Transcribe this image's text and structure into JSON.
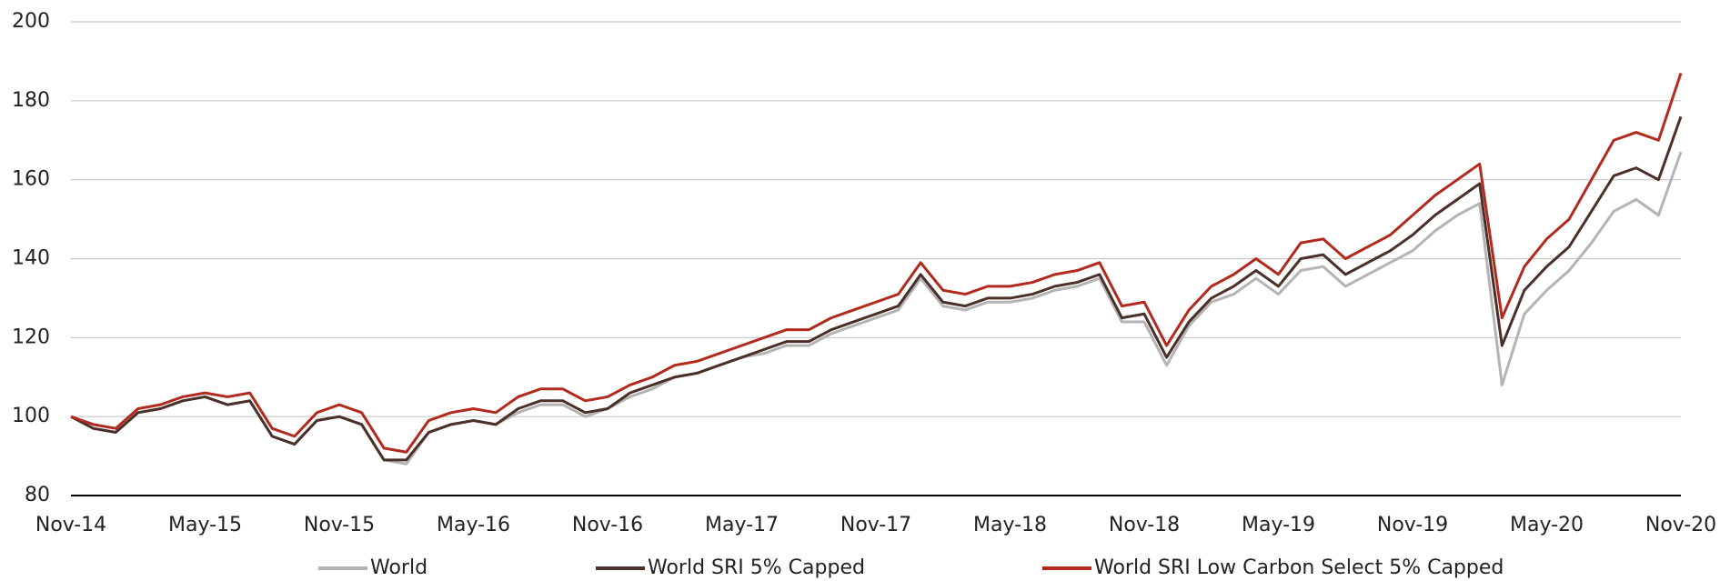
{
  "chart_data": {
    "type": "line",
    "categories": [
      "Nov-14",
      null,
      null,
      null,
      null,
      null,
      "May-15",
      null,
      null,
      null,
      null,
      null,
      "Nov-15",
      null,
      null,
      null,
      null,
      null,
      "May-16",
      null,
      null,
      null,
      null,
      null,
      "Nov-16",
      null,
      null,
      null,
      null,
      null,
      "May-17",
      null,
      null,
      null,
      null,
      null,
      "Nov-17",
      null,
      null,
      null,
      null,
      null,
      "May-18",
      null,
      null,
      null,
      null,
      null,
      "Nov-18",
      null,
      null,
      null,
      null,
      null,
      "May-19",
      null,
      null,
      null,
      null,
      null,
      "Nov-19",
      null,
      null,
      null,
      null,
      null,
      "May-20",
      null,
      null,
      null,
      null,
      null,
      "Nov-20"
    ],
    "series": [
      {
        "name": "World",
        "color": "#b4b4b4",
        "values": [
          100,
          97,
          96,
          101,
          102,
          104,
          105,
          103,
          104,
          95,
          93,
          99,
          100,
          98,
          89,
          88,
          96,
          98,
          99,
          98,
          101,
          103,
          103,
          100,
          102,
          105,
          107,
          110,
          111,
          113,
          115,
          116,
          118,
          118,
          121,
          123,
          125,
          127,
          135,
          128,
          127,
          129,
          129,
          130,
          132,
          133,
          135,
          124,
          124,
          113,
          123,
          129,
          131,
          135,
          131,
          137,
          138,
          133,
          136,
          139,
          142,
          147,
          151,
          154,
          108,
          126,
          132,
          137,
          144,
          152,
          155,
          151,
          167
        ]
      },
      {
        "name": "World SRI 5% Capped",
        "color": "#4a3028",
        "values": [
          100,
          97,
          96,
          101,
          102,
          104,
          105,
          103,
          104,
          95,
          93,
          99,
          100,
          98,
          89,
          89,
          96,
          98,
          99,
          98,
          102,
          104,
          104,
          101,
          102,
          106,
          108,
          110,
          111,
          113,
          115,
          117,
          119,
          119,
          122,
          124,
          126,
          128,
          136,
          129,
          128,
          130,
          130,
          131,
          133,
          134,
          136,
          125,
          126,
          115,
          124,
          130,
          133,
          137,
          133,
          140,
          141,
          136,
          139,
          142,
          146,
          151,
          155,
          159,
          118,
          132,
          138,
          143,
          152,
          161,
          163,
          160,
          176
        ]
      },
      {
        "name": "World SRI Low Carbon Select 5% Capped",
        "color": "#b22a1d",
        "values": [
          100,
          98,
          97,
          102,
          103,
          105,
          106,
          105,
          106,
          97,
          95,
          101,
          103,
          101,
          92,
          91,
          99,
          101,
          102,
          101,
          105,
          107,
          107,
          104,
          105,
          108,
          110,
          113,
          114,
          116,
          118,
          120,
          122,
          122,
          125,
          127,
          129,
          131,
          139,
          132,
          131,
          133,
          133,
          134,
          136,
          137,
          139,
          128,
          129,
          118,
          127,
          133,
          136,
          140,
          136,
          144,
          145,
          140,
          143,
          146,
          151,
          156,
          160,
          164,
          125,
          138,
          145,
          150,
          160,
          170,
          172,
          170,
          187
        ]
      }
    ],
    "ylim": [
      80,
      200
    ],
    "yticks": [
      80,
      100,
      120,
      140,
      160,
      180,
      200
    ],
    "grid": true,
    "legend": "bottom"
  }
}
